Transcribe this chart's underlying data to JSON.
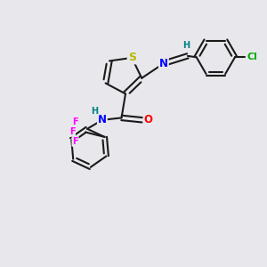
{
  "bg_color": "#e8e8ec",
  "bond_color": "#1a1a1a",
  "bond_width": 1.5,
  "atom_colors": {
    "S": "#b8b800",
    "N": "#0000ff",
    "O": "#ff0000",
    "Cl": "#00aa00",
    "F": "#ff00ff",
    "H": "#008080",
    "C": "#1a1a1a"
  },
  "font_size": 8.5
}
